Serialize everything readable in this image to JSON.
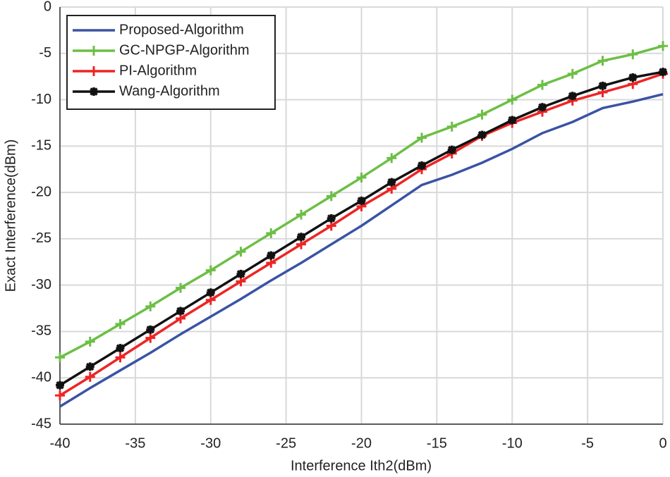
{
  "chart_data": {
    "type": "line",
    "x_label": "Interference Ith2(dBm)",
    "y_label": "Exact Interference(dBm)",
    "x": [
      -40,
      -38,
      -36,
      -34,
      -32,
      -30,
      -28,
      -26,
      -24,
      -22,
      -20,
      -18,
      -16,
      -14,
      -12,
      -10,
      -8,
      -6,
      -4,
      -2,
      0
    ],
    "series": [
      {
        "name": "Proposed-Algorithm",
        "color": "#3a53a4",
        "values": [
          -43.1,
          -41.1,
          -39.2,
          -37.3,
          -35.3,
          -33.4,
          -31.5,
          -29.5,
          -27.6,
          -25.6,
          -23.6,
          -21.4,
          -19.2,
          -18.1,
          -16.8,
          -15.3,
          -13.6,
          -12.4,
          -10.9,
          -10.2,
          -9.4
        ]
      },
      {
        "name": "GC-NPGP-Algorithm",
        "color": "#6cbf45",
        "marker": "plus",
        "values": [
          -37.8,
          -36.1,
          -34.2,
          -32.3,
          -30.3,
          -28.4,
          -26.4,
          -24.4,
          -22.4,
          -20.4,
          -18.4,
          -16.3,
          -14.1,
          -12.9,
          -11.6,
          -10.0,
          -8.4,
          -7.2,
          -5.8,
          -5.1,
          -4.2
        ]
      },
      {
        "name": "PI-Algorithm",
        "color": "#ee2424",
        "marker": "plus",
        "values": [
          -41.9,
          -39.9,
          -37.8,
          -35.7,
          -33.6,
          -31.6,
          -29.6,
          -27.6,
          -25.6,
          -23.6,
          -21.5,
          -19.6,
          -17.5,
          -15.8,
          -13.9,
          -12.5,
          -11.3,
          -10.1,
          -9.2,
          -8.3,
          -7.2
        ]
      },
      {
        "name": "Wang-Algorithm",
        "color": "#111111",
        "marker": "asterisk",
        "values": [
          -40.8,
          -38.8,
          -36.8,
          -34.8,
          -32.8,
          -30.8,
          -28.8,
          -26.8,
          -24.8,
          -22.8,
          -20.9,
          -18.9,
          -17.1,
          -15.4,
          -13.8,
          -12.2,
          -10.8,
          -9.6,
          -8.5,
          -7.6,
          -7.0
        ]
      }
    ],
    "xlim": [
      -40,
      0
    ],
    "xticks": [
      -40,
      -35,
      -30,
      -25,
      -20,
      -15,
      -10,
      -5,
      0
    ],
    "ylim": [
      -45,
      0
    ],
    "yticks": [
      -45,
      -40,
      -35,
      -30,
      -25,
      -20,
      -15,
      -10,
      -5,
      0
    ],
    "grid": true,
    "legend": "top-left"
  }
}
